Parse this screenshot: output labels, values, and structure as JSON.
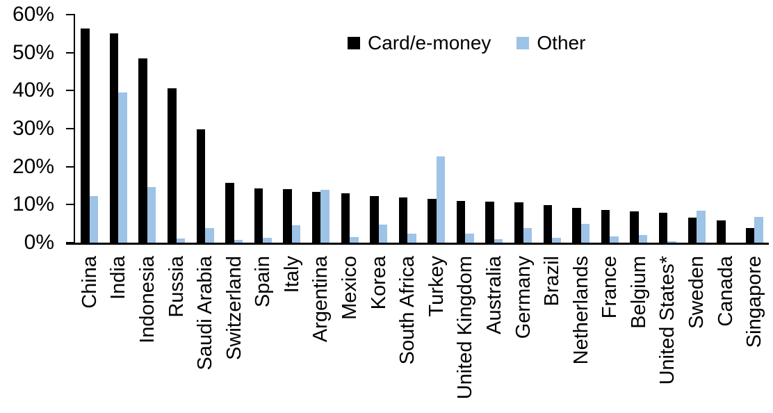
{
  "chart_data": {
    "type": "bar",
    "title": "",
    "xlabel": "",
    "ylabel": "",
    "ylim": [
      0,
      60
    ],
    "ytick_step": 10,
    "ytick_labels": [
      "0%",
      "10%",
      "20%",
      "30%",
      "40%",
      "50%",
      "60%"
    ],
    "grid": false,
    "legend_position": "top-center",
    "axis_color": "#000000",
    "background_color": "#ffffff",
    "categories": [
      "China",
      "India",
      "Indonesia",
      "Russia",
      "Saudi Arabia",
      "Switzerland",
      "Spain",
      "Italy",
      "Argentina",
      "Mexico",
      "Korea",
      "South Africa",
      "Turkey",
      "United Kingdom",
      "Australia",
      "Germany",
      "Brazil",
      "Netherlands",
      "France",
      "Belgium",
      "United States*",
      "Sweden",
      "Canada",
      "Singapore"
    ],
    "series": [
      {
        "name": "Card/e-money",
        "color": "#000000",
        "values": [
          56.3,
          55.1,
          48.4,
          40.6,
          29.9,
          15.7,
          14.2,
          14.1,
          13.4,
          12.9,
          12.3,
          11.8,
          11.6,
          11.0,
          10.8,
          10.6,
          9.9,
          9.2,
          8.6,
          8.2,
          7.9,
          6.6,
          5.9,
          3.9
        ]
      },
      {
        "name": "Other",
        "color": "#9dc3e6",
        "values": [
          12.3,
          39.6,
          14.6,
          1.1,
          3.9,
          0.8,
          1.2,
          4.6,
          13.9,
          1.4,
          4.7,
          2.4,
          22.6,
          2.4,
          1.0,
          3.9,
          1.2,
          4.9,
          1.6,
          2.1,
          0.3,
          8.4,
          0,
          6.7
        ]
      }
    ]
  },
  "legend": {
    "items": [
      {
        "label": "Card/e-money",
        "color": "#000000"
      },
      {
        "label": "Other",
        "color": "#9dc3e6"
      }
    ]
  }
}
